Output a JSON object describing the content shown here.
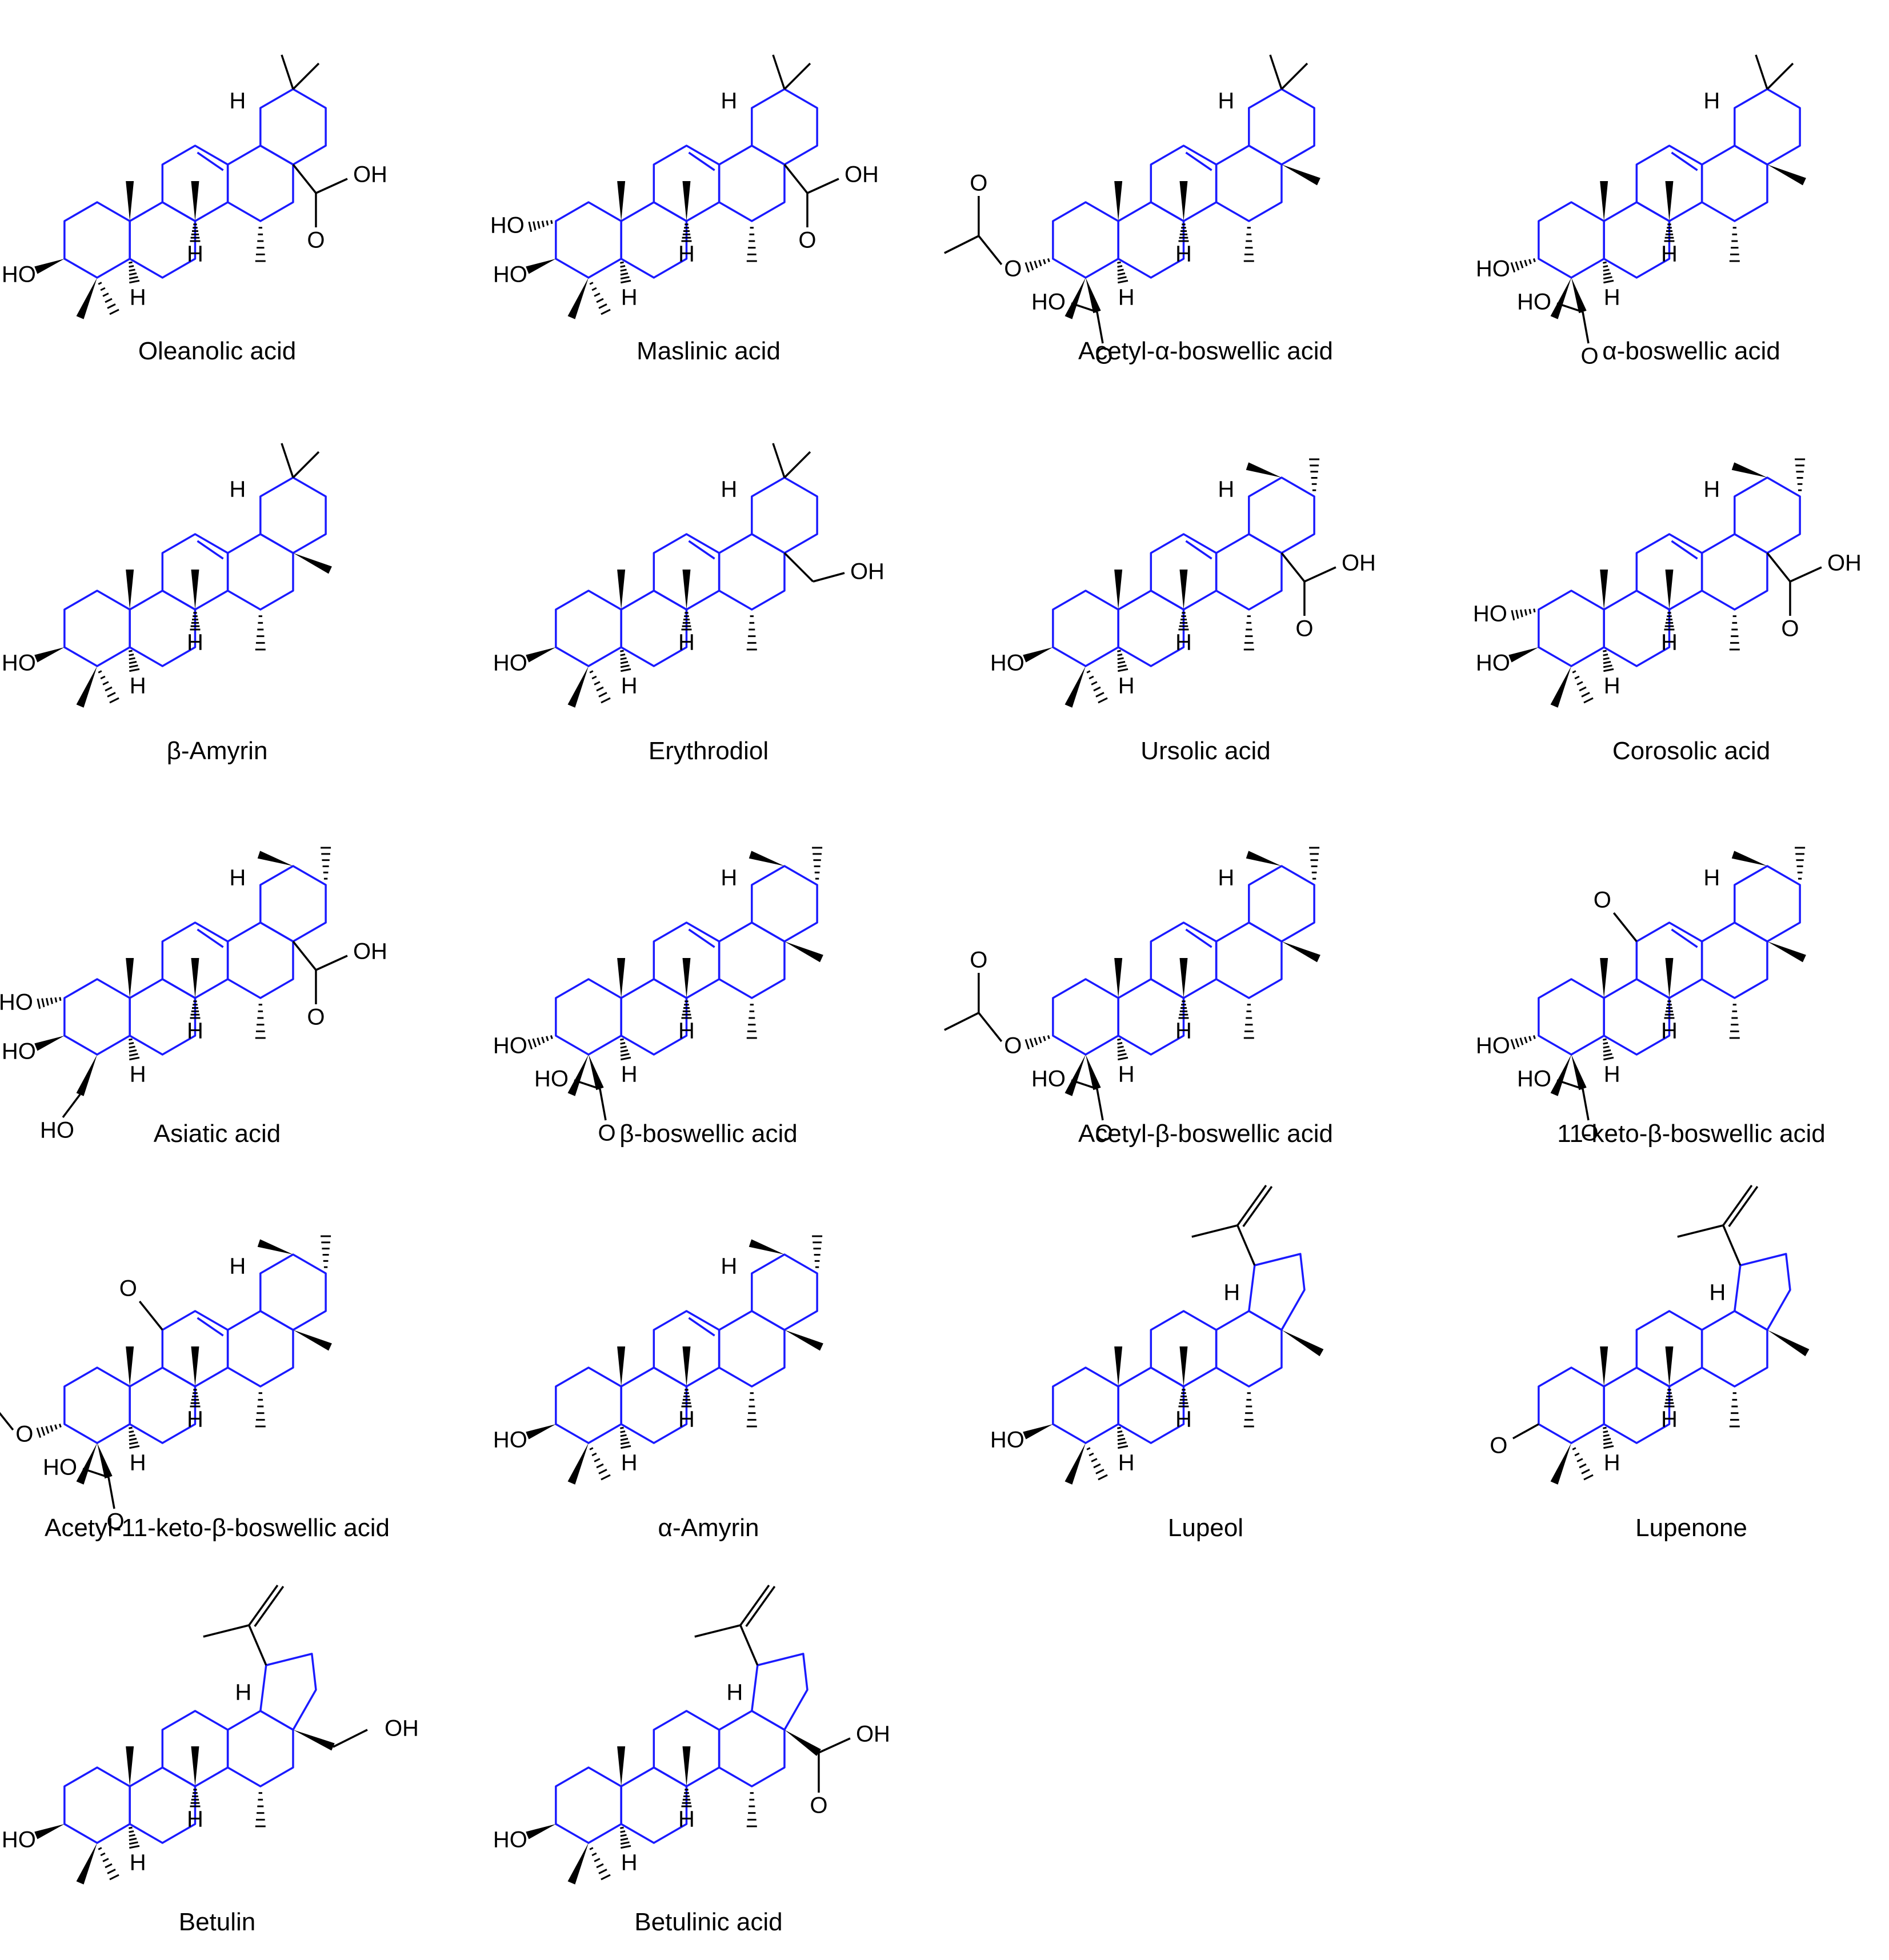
{
  "compounds": [
    {
      "name": "Oleanolic acid",
      "family": "oleanane",
      "subs": [
        "3b-OH",
        "28-COOH",
        "13H"
      ]
    },
    {
      "name": "Maslinic acid",
      "family": "oleanane",
      "subs": [
        "2a-OH",
        "3b-OH",
        "28-COOH",
        "13H"
      ]
    },
    {
      "name": "Acetyl-α-boswellic acid",
      "family": "oleanane",
      "subs": [
        "3a-OAc",
        "24-COOH",
        "13H"
      ]
    },
    {
      "name": "α-boswellic acid",
      "family": "oleanane",
      "subs": [
        "3a-OH",
        "24-COOH",
        "13H"
      ]
    },
    {
      "name": "β-Amyrin",
      "family": "oleanane",
      "subs": [
        "3b-OH",
        "13H"
      ]
    },
    {
      "name": "Erythrodiol",
      "family": "oleanane",
      "subs": [
        "3b-OH",
        "28-CH2OH",
        "13H"
      ]
    },
    {
      "name": "Ursolic acid",
      "family": "ursane",
      "subs": [
        "3b-OH",
        "28-COOH"
      ]
    },
    {
      "name": "Corosolic acid",
      "family": "ursane",
      "subs": [
        "2a-OH",
        "3b-OH",
        "28-COOH"
      ]
    },
    {
      "name": "Asiatic acid",
      "family": "ursane",
      "subs": [
        "2a-OH",
        "3b-OH",
        "23-CH2OH",
        "28-COOH"
      ]
    },
    {
      "name": "β-boswellic acid",
      "family": "ursane",
      "subs": [
        "3a-OH",
        "24-COOH"
      ]
    },
    {
      "name": "Acetyl-β-boswellic acid",
      "family": "ursane",
      "subs": [
        "3a-OAc",
        "24-COOH"
      ]
    },
    {
      "name": "11-keto-β-boswellic acid",
      "family": "ursane",
      "subs": [
        "3a-OH",
        "24-COOH",
        "11-oxo"
      ]
    },
    {
      "name": "Acetyl-11-keto-β-boswellic acid",
      "family": "ursane",
      "subs": [
        "3a-OAc",
        "24-COOH",
        "11-oxo"
      ]
    },
    {
      "name": "α-Amyrin",
      "family": "ursane",
      "subs": [
        "3b-OH"
      ]
    },
    {
      "name": "Lupeol",
      "family": "lupane",
      "subs": [
        "3b-OH"
      ]
    },
    {
      "name": "Lupenone",
      "family": "lupane",
      "subs": [
        "3-oxo"
      ]
    },
    {
      "name": "Betulin",
      "family": "lupane",
      "subs": [
        "3b-OH",
        "28-CH2OH"
      ]
    },
    {
      "name": "Betulinic acid",
      "family": "lupane",
      "subs": [
        "3b-OH",
        "28-COOH"
      ]
    }
  ],
  "atom_labels": {
    "OH": "OH",
    "HO": "HO",
    "O": "O",
    "H": "H"
  },
  "colors": {
    "skeleton": "#1a1aff",
    "substituent": "#000000"
  }
}
